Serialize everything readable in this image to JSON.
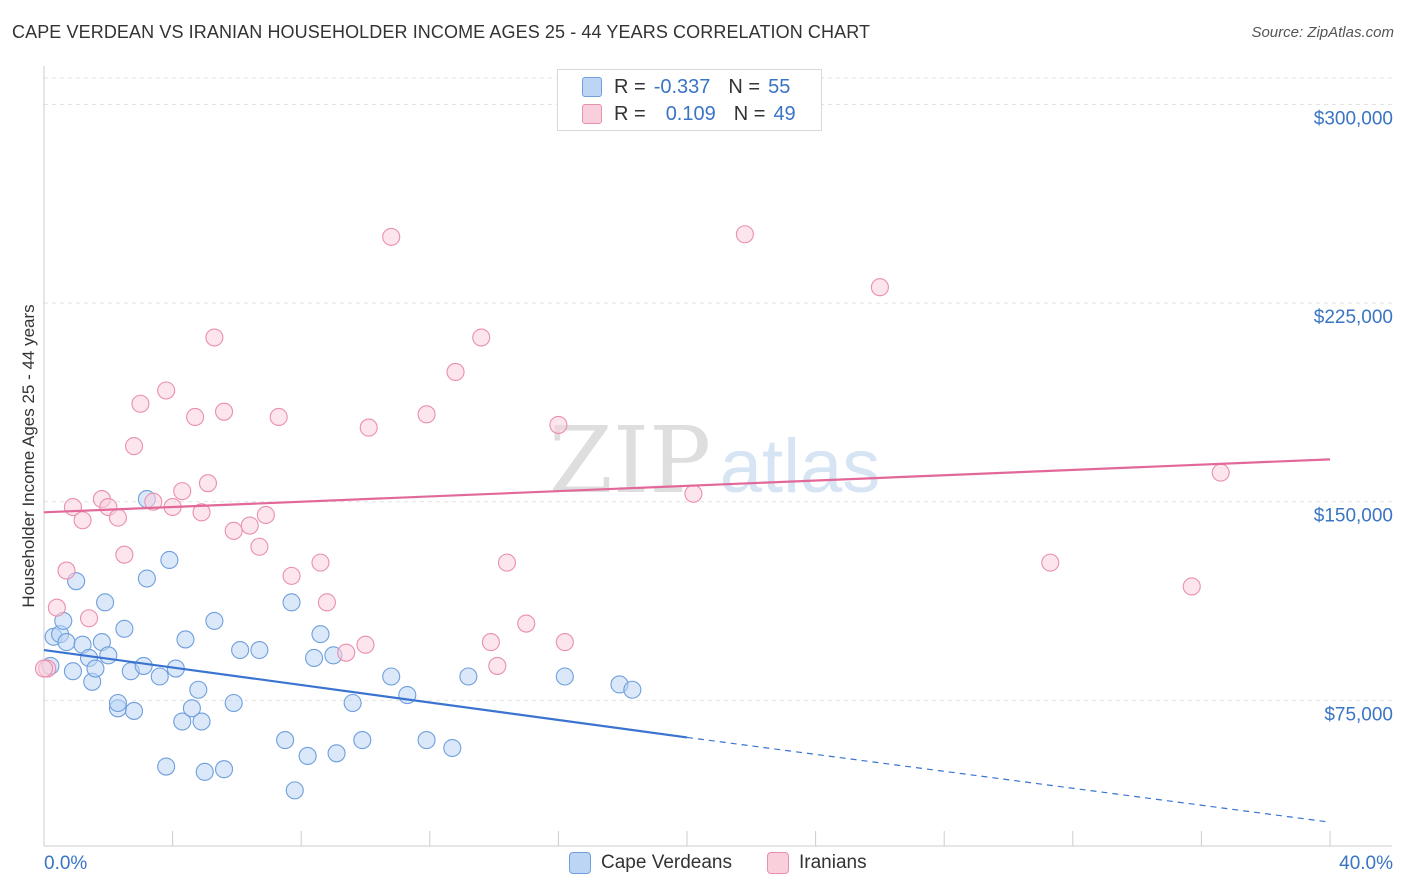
{
  "title": "CAPE VERDEAN VS IRANIAN HOUSEHOLDER INCOME AGES 25 - 44 YEARS CORRELATION CHART",
  "source": "Source: ZipAtlas.com",
  "watermark": {
    "zip": "ZIP",
    "atlas": "atlas"
  },
  "legend": {
    "series": [
      {
        "r_label": "R =",
        "r_value": "-0.337",
        "n_label": "N =",
        "n_value": "55",
        "color": "#a9c8f0",
        "border": "#6f9fdc"
      },
      {
        "r_label": "R =",
        "r_value": "0.109",
        "n_label": "N =",
        "n_value": "49",
        "color": "#f7bed0",
        "border": "#ea8fae"
      }
    ]
  },
  "bottom_legend": [
    "Cape Verdeans",
    "Iranians"
  ],
  "chart_data": {
    "type": "scatter",
    "title": "CAPE VERDEAN VS IRANIAN HOUSEHOLDER INCOME AGES 25 - 44 YEARS CORRELATION CHART",
    "xlabel": "",
    "ylabel": "Householder Income Ages 25 - 44 years",
    "xlim": [
      0,
      40
    ],
    "ylim": [
      20000,
      310000
    ],
    "x_tick_labels": [
      "0.0%",
      "40.0%"
    ],
    "y_ticks": [
      75000,
      150000,
      225000,
      300000
    ],
    "y_tick_labels": [
      "$75,000",
      "$150,000",
      "$225,000",
      "$300,000"
    ],
    "grid": true,
    "legend_position": "top-center",
    "series": [
      {
        "name": "Cape Verdeans",
        "color": "#6f9fdc",
        "fill": "#bcd5f5",
        "trend": {
          "x": [
            0,
            20
          ],
          "y": [
            94000,
            61000
          ],
          "dashed_to": [
            40,
            29000
          ],
          "color": "#3a74d0"
        },
        "points": [
          [
            0.2,
            88000
          ],
          [
            0.3,
            99000
          ],
          [
            0.5,
            100000
          ],
          [
            0.6,
            105000
          ],
          [
            0.7,
            97000
          ],
          [
            0.9,
            86000
          ],
          [
            1.0,
            120000
          ],
          [
            1.2,
            96000
          ],
          [
            1.4,
            91000
          ],
          [
            1.5,
            82000
          ],
          [
            1.6,
            87000
          ],
          [
            1.8,
            97000
          ],
          [
            1.9,
            112000
          ],
          [
            2.0,
            92000
          ],
          [
            2.3,
            72000
          ],
          [
            2.3,
            74000
          ],
          [
            2.5,
            102000
          ],
          [
            2.7,
            86000
          ],
          [
            2.8,
            71000
          ],
          [
            3.1,
            88000
          ],
          [
            3.2,
            121000
          ],
          [
            3.2,
            151000
          ],
          [
            3.6,
            84000
          ],
          [
            3.8,
            50000
          ],
          [
            3.9,
            128000
          ],
          [
            4.1,
            87000
          ],
          [
            4.3,
            67000
          ],
          [
            4.4,
            98000
          ],
          [
            4.6,
            72000
          ],
          [
            4.8,
            79000
          ],
          [
            4.9,
            67000
          ],
          [
            5.0,
            48000
          ],
          [
            5.3,
            105000
          ],
          [
            5.6,
            49000
          ],
          [
            5.9,
            74000
          ],
          [
            6.1,
            94000
          ],
          [
            6.7,
            94000
          ],
          [
            7.5,
            60000
          ],
          [
            7.7,
            112000
          ],
          [
            7.8,
            41000
          ],
          [
            8.2,
            54000
          ],
          [
            8.4,
            91000
          ],
          [
            8.6,
            100000
          ],
          [
            9.0,
            92000
          ],
          [
            9.1,
            55000
          ],
          [
            9.6,
            74000
          ],
          [
            9.9,
            60000
          ],
          [
            10.8,
            84000
          ],
          [
            11.3,
            77000
          ],
          [
            11.9,
            60000
          ],
          [
            12.7,
            57000
          ],
          [
            13.2,
            84000
          ],
          [
            16.2,
            84000
          ],
          [
            17.9,
            81000
          ],
          [
            18.3,
            79000
          ]
        ]
      },
      {
        "name": "Iranians",
        "color": "#ea8fae",
        "fill": "#f9cfdc",
        "trend": {
          "x": [
            0,
            40
          ],
          "y": [
            146000,
            166000
          ],
          "color": "#e2689a"
        },
        "points": [
          [
            0.1,
            87000
          ],
          [
            0.4,
            110000
          ],
          [
            0.7,
            124000
          ],
          [
            0.9,
            148000
          ],
          [
            1.2,
            143000
          ],
          [
            1.4,
            106000
          ],
          [
            1.8,
            151000
          ],
          [
            2.0,
            148000
          ],
          [
            2.3,
            144000
          ],
          [
            2.5,
            130000
          ],
          [
            2.8,
            171000
          ],
          [
            3.0,
            187000
          ],
          [
            3.4,
            150000
          ],
          [
            3.8,
            192000
          ],
          [
            4.0,
            148000
          ],
          [
            4.3,
            154000
          ],
          [
            4.7,
            182000
          ],
          [
            4.9,
            146000
          ],
          [
            5.1,
            157000
          ],
          [
            5.3,
            212000
          ],
          [
            5.6,
            184000
          ],
          [
            5.9,
            139000
          ],
          [
            6.4,
            141000
          ],
          [
            6.7,
            133000
          ],
          [
            6.9,
            145000
          ],
          [
            7.3,
            182000
          ],
          [
            7.7,
            122000
          ],
          [
            8.6,
            127000
          ],
          [
            8.8,
            112000
          ],
          [
            9.4,
            93000
          ],
          [
            10.0,
            96000
          ],
          [
            10.1,
            178000
          ],
          [
            10.8,
            250000
          ],
          [
            11.9,
            183000
          ],
          [
            12.8,
            199000
          ],
          [
            13.6,
            212000
          ],
          [
            13.9,
            97000
          ],
          [
            14.1,
            88000
          ],
          [
            14.4,
            127000
          ],
          [
            15.0,
            104000
          ],
          [
            16.0,
            179000
          ],
          [
            16.2,
            97000
          ],
          [
            20.2,
            153000
          ],
          [
            21.8,
            251000
          ],
          [
            26.0,
            231000
          ],
          [
            31.3,
            127000
          ],
          [
            35.7,
            118000
          ],
          [
            36.6,
            161000
          ],
          [
            0.0,
            87000
          ]
        ]
      }
    ]
  }
}
